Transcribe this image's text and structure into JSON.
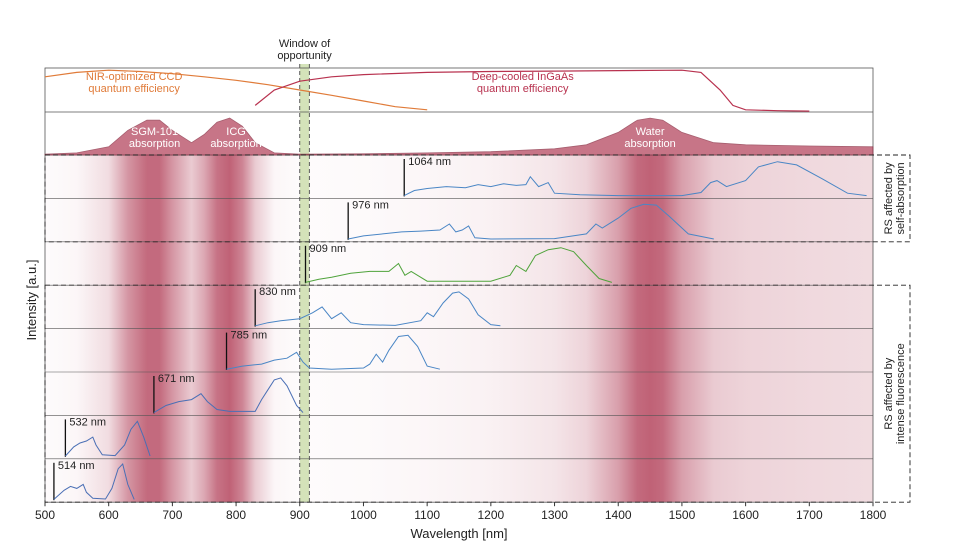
{
  "chart_data": {
    "type": "stacked-spectra",
    "x_label": "Wavelength [nm]",
    "y_label": "Intensity [a.u.]",
    "xlim": [
      500,
      1800
    ],
    "xticks": [
      500,
      600,
      700,
      800,
      900,
      1000,
      1100,
      1200,
      1300,
      1400,
      1500,
      1600,
      1700,
      1800
    ],
    "window": {
      "lines": [
        "Window of",
        "opportunity"
      ],
      "range": [
        900,
        915
      ],
      "color": "#c9dca8"
    },
    "qe_curves": [
      {
        "lines": [
          "NIR-optimized CCD",
          "quantum efficiency"
        ],
        "color": "#e07b39",
        "x": [
          500,
          550,
          600,
          650,
          700,
          750,
          800,
          850,
          900,
          950,
          1000,
          1050,
          1100
        ],
        "values": [
          0.8,
          0.9,
          0.95,
          0.92,
          0.87,
          0.8,
          0.72,
          0.62,
          0.5,
          0.38,
          0.25,
          0.12,
          0.05
        ]
      },
      {
        "lines": [
          "Deep-cooled InGaAs",
          "quantum efficiency"
        ],
        "color": "#b8324f",
        "x": [
          830,
          860,
          900,
          950,
          1000,
          1100,
          1200,
          1300,
          1400,
          1500,
          1530,
          1560,
          1580,
          1600,
          1650,
          1700
        ],
        "values": [
          0.15,
          0.5,
          0.7,
          0.8,
          0.85,
          0.9,
          0.92,
          0.93,
          0.94,
          0.95,
          0.9,
          0.5,
          0.15,
          0.05,
          0.03,
          0.02
        ]
      }
    ],
    "absorption": {
      "color": "#b5475f",
      "x": [
        500,
        550,
        600,
        630,
        660,
        680,
        700,
        730,
        750,
        770,
        790,
        810,
        830,
        860,
        900,
        1000,
        1100,
        1200,
        1300,
        1350,
        1400,
        1430,
        1450,
        1470,
        1500,
        1550,
        1600,
        1700,
        1800
      ],
      "values": [
        0.02,
        0.05,
        0.2,
        0.6,
        0.85,
        0.85,
        0.6,
        0.3,
        0.5,
        0.8,
        0.9,
        0.7,
        0.3,
        0.05,
        0.02,
        0.03,
        0.05,
        0.08,
        0.15,
        0.25,
        0.55,
        0.85,
        0.9,
        0.85,
        0.55,
        0.3,
        0.25,
        0.22,
        0.2
      ],
      "labels": [
        [
          "SGM-101",
          "absorption"
        ],
        [
          "ICG",
          "absorption"
        ],
        [
          "Water",
          "absorption"
        ]
      ]
    },
    "groups": [
      {
        "lines": [
          "RS affected by",
          "self-absorption"
        ]
      },
      {
        "lines": [
          "RS affected by",
          "intense fluorescence"
        ]
      }
    ],
    "series": [
      {
        "name": "1064 nm",
        "laser": 1064,
        "color": "#4a86c5",
        "x": [
          1064,
          1080,
          1100,
          1130,
          1160,
          1180,
          1200,
          1220,
          1240,
          1255,
          1262,
          1275,
          1290,
          1300,
          1340,
          1400,
          1500,
          1530,
          1545,
          1555,
          1570,
          1600,
          1620,
          1650,
          1680,
          1720,
          1760,
          1790
        ],
        "values": [
          0.02,
          0.15,
          0.2,
          0.25,
          0.22,
          0.3,
          0.25,
          0.32,
          0.28,
          0.3,
          0.5,
          0.25,
          0.35,
          0.08,
          0.04,
          0.02,
          0.02,
          0.1,
          0.35,
          0.4,
          0.25,
          0.4,
          0.75,
          0.88,
          0.8,
          0.45,
          0.08,
          0.02
        ]
      },
      {
        "name": "976 nm",
        "laser": 976,
        "color": "#4a86c5",
        "x": [
          976,
          1000,
          1030,
          1060,
          1090,
          1120,
          1135,
          1145,
          1155,
          1165,
          1175,
          1200,
          1300,
          1350,
          1365,
          1375,
          1400,
          1420,
          1440,
          1460,
          1480,
          1510,
          1550
        ],
        "values": [
          0.02,
          0.1,
          0.15,
          0.2,
          0.22,
          0.25,
          0.4,
          0.2,
          0.25,
          0.35,
          0.05,
          0.02,
          0.03,
          0.15,
          0.4,
          0.3,
          0.55,
          0.8,
          0.9,
          0.88,
          0.6,
          0.15,
          0.02
        ]
      },
      {
        "name": "909 nm",
        "laser": 909,
        "color": "#4fa33b",
        "x": [
          909,
          930,
          950,
          980,
          1010,
          1040,
          1055,
          1065,
          1075,
          1100,
          1200,
          1230,
          1240,
          1255,
          1270,
          1290,
          1310,
          1330,
          1350,
          1370,
          1390
        ],
        "values": [
          0.02,
          0.1,
          0.15,
          0.25,
          0.3,
          0.3,
          0.5,
          0.2,
          0.3,
          0.05,
          0.05,
          0.2,
          0.45,
          0.3,
          0.7,
          0.85,
          0.9,
          0.8,
          0.45,
          0.12,
          0.02
        ]
      },
      {
        "name": "830 nm",
        "laser": 830,
        "color": "#4a86c5",
        "x": [
          830,
          850,
          870,
          900,
          920,
          935,
          950,
          965,
          980,
          1000,
          1050,
          1090,
          1100,
          1110,
          1125,
          1140,
          1150,
          1165,
          1180,
          1200,
          1215
        ],
        "values": [
          0.02,
          0.1,
          0.15,
          0.2,
          0.35,
          0.5,
          0.2,
          0.35,
          0.1,
          0.05,
          0.03,
          0.15,
          0.35,
          0.25,
          0.6,
          0.85,
          0.88,
          0.7,
          0.3,
          0.05,
          0.02
        ]
      },
      {
        "name": "785 nm",
        "laser": 785,
        "color": "#4a86c5",
        "x": [
          785,
          810,
          840,
          860,
          880,
          895,
          905,
          915,
          950,
          1000,
          1010,
          1020,
          1030,
          1040,
          1055,
          1070,
          1085,
          1100,
          1120
        ],
        "values": [
          0.02,
          0.1,
          0.15,
          0.25,
          0.3,
          0.45,
          0.2,
          0.05,
          0.02,
          0.05,
          0.15,
          0.4,
          0.2,
          0.5,
          0.85,
          0.88,
          0.6,
          0.1,
          0.02
        ]
      },
      {
        "name": "671 nm",
        "laser": 671,
        "color": "#4a6fb5",
        "x": [
          671,
          690,
          710,
          730,
          745,
          755,
          770,
          790,
          830,
          840,
          850,
          860,
          870,
          880,
          895,
          905
        ],
        "values": [
          0.02,
          0.2,
          0.3,
          0.35,
          0.5,
          0.3,
          0.1,
          0.05,
          0.05,
          0.35,
          0.6,
          0.85,
          0.9,
          0.7,
          0.2,
          0.02
        ]
      },
      {
        "name": "532 nm",
        "laser": 532,
        "color": "#4a6fb5",
        "x": [
          532,
          545,
          555,
          565,
          575,
          580,
          590,
          610,
          625,
          635,
          645,
          655,
          665
        ],
        "values": [
          0.02,
          0.25,
          0.35,
          0.4,
          0.5,
          0.3,
          0.05,
          0.03,
          0.3,
          0.7,
          0.9,
          0.5,
          0.02
        ]
      },
      {
        "name": "514 nm",
        "laser": 514,
        "color": "#4a6fb5",
        "x": [
          514,
          530,
          540,
          550,
          560,
          565,
          575,
          595,
          605,
          615,
          622,
          630,
          640
        ],
        "values": [
          0.02,
          0.25,
          0.35,
          0.3,
          0.4,
          0.2,
          0.05,
          0.03,
          0.3,
          0.8,
          0.92,
          0.4,
          0.02
        ]
      }
    ]
  }
}
